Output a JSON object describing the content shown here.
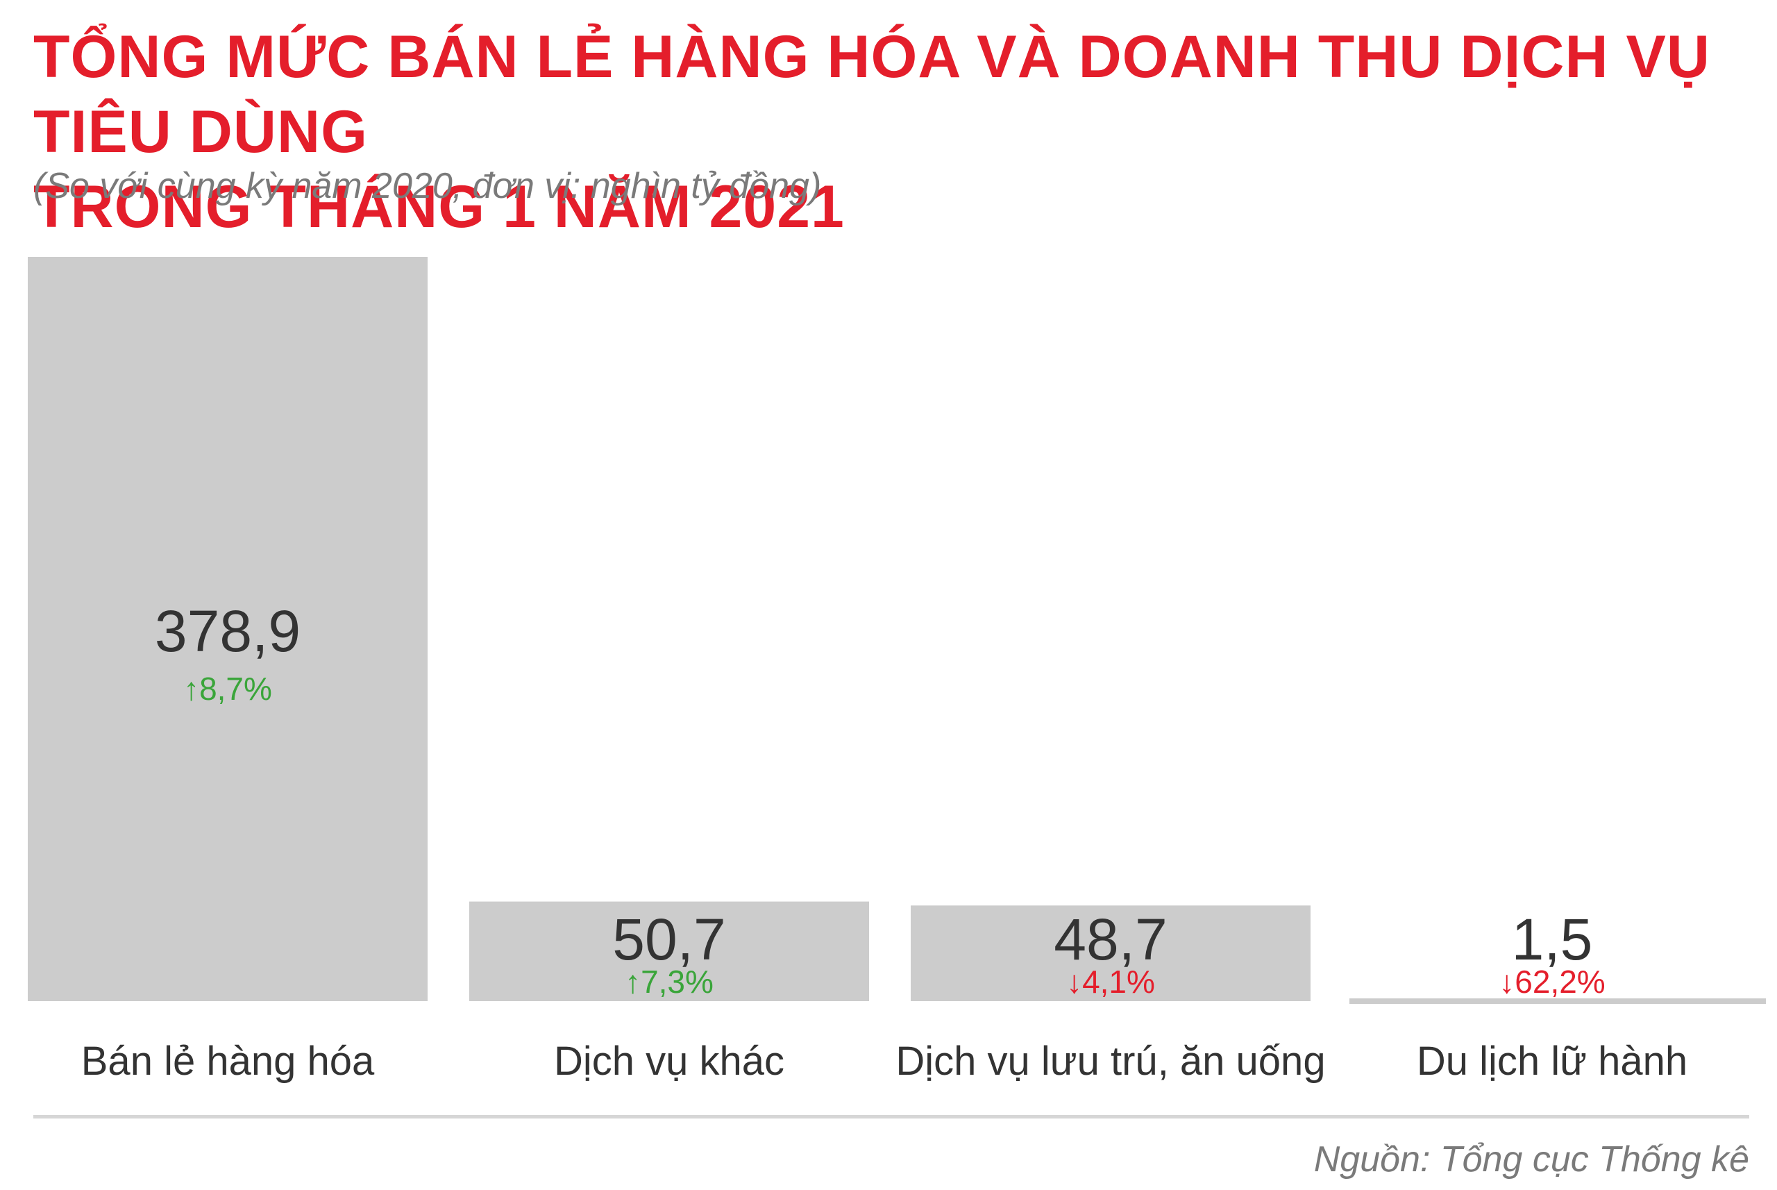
{
  "title_line1": "TỔNG MỨC BÁN LẺ HÀNG HÓA VÀ DOANH THU DỊCH VỤ TIÊU DÙNG",
  "title_line2": "TRONG THÁNG 1 NĂM 2021",
  "subtitle": "(So với cùng kỳ năm 2020, đơn vị: nghìn tỷ đồng)",
  "source": "Nguồn: Tổng cục Thống kê",
  "colors": {
    "title": "#e41e2b",
    "bar": "#cccccc",
    "value_text": "#333333",
    "up": "#3aa53a",
    "down": "#e41e2b",
    "muted": "#7a7a7a"
  },
  "chart_data": {
    "type": "bar",
    "categories": [
      "Bán lẻ hàng hóa",
      "Dịch vụ khác",
      "Dịch vụ lưu trú, ăn uống",
      "Du lịch lữ hành"
    ],
    "values": [
      378.9,
      50.7,
      48.7,
      1.5
    ],
    "value_labels": [
      "378,9",
      "50,7",
      "48,7",
      "1,5"
    ],
    "changes": [
      {
        "direction": "up",
        "label": "8,7%"
      },
      {
        "direction": "up",
        "label": "7,3%"
      },
      {
        "direction": "down",
        "label": "4,1%"
      },
      {
        "direction": "down",
        "label": "62,2%"
      }
    ],
    "ylim": [
      0,
      378.9
    ],
    "grid": false
  }
}
